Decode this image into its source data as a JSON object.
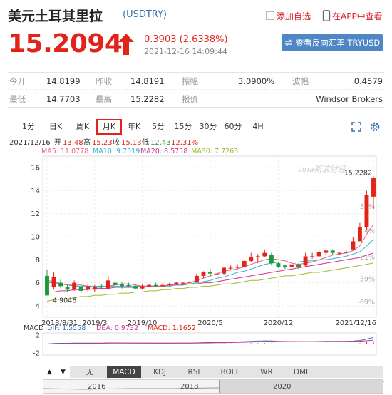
{
  "header": {
    "title": "美元土耳其里拉",
    "symbol": "(USDTRY)",
    "fav_label": "添加自选",
    "app_label": "在APP中查看",
    "price": "15.2094",
    "change": "0.3903 (2.6338%)",
    "time": "2021-12-16 14:09:44",
    "reverse_button": "查看反向汇率 TRYUSD",
    "colors": {
      "up": "#e2231a",
      "accent": "#4f86c6"
    }
  },
  "stats": {
    "row1": [
      {
        "label": "今开",
        "value": "14.8199"
      },
      {
        "label": "昨收",
        "value": "14.8191"
      },
      {
        "label": "振幅",
        "value": "3.0900%"
      },
      {
        "label": "波幅",
        "value": "0.4579"
      }
    ],
    "row2": [
      {
        "label": "最低",
        "value": "14.7703"
      },
      {
        "label": "最高",
        "value": "15.2282"
      },
      {
        "label": "报价",
        "value": "Windsor Brokers"
      }
    ]
  },
  "periods": {
    "items": [
      "1分",
      "日K",
      "周K",
      "月K",
      "年K",
      "5分",
      "15分",
      "30分",
      "60分",
      "4H"
    ],
    "active": "月K"
  },
  "ohlc": {
    "date": "2021/12/16",
    "open_label": "开",
    "open": "13.48",
    "high_label": "高",
    "high": "15.23",
    "close_label": "收",
    "close": "15.13",
    "low_label": "低",
    "low": "12.43",
    "pct": "12.31%"
  },
  "ma": {
    "ma5": "MA5: 11.0778",
    "ma10": "MA10: 9.7519",
    "ma20": "MA20: 8.5758",
    "ma30": "MA30: 7.7263",
    "colors": {
      "ma5": "#e8637f",
      "ma10": "#2fb4d6",
      "ma20": "#d2318e",
      "ma30": "#9bbf2a"
    }
  },
  "chart_data": {
    "type": "candlestick",
    "y_ticks": [
      "16",
      "14",
      "12",
      "10",
      "8",
      "6",
      "4"
    ],
    "y_values": [
      16,
      14,
      12,
      10,
      8,
      6,
      4
    ],
    "pct_ticks": [
      "38%",
      "4%",
      "-21%",
      "-39%",
      "-69%"
    ],
    "x_ticks": [
      "2018/8/31",
      "2019/3",
      "2019/10",
      "2020/5",
      "2020/12",
      "2021/12/16"
    ],
    "max_label": "15.2282",
    "min_label": "4.9046",
    "watermark": "sina新浪财经",
    "candles": [
      [
        6.6,
        4.9,
        7.1,
        4.9
      ],
      [
        5.6,
        6.5,
        6.9,
        5.4
      ],
      [
        6.0,
        5.7,
        6.3,
        5.5
      ],
      [
        5.6,
        5.4,
        5.8,
        5.2
      ],
      [
        5.4,
        6.0,
        6.2,
        5.3
      ],
      [
        5.6,
        5.3,
        5.8,
        5.1
      ],
      [
        5.4,
        5.7,
        5.9,
        5.2
      ],
      [
        5.4,
        5.6,
        5.8,
        5.2
      ],
      [
        5.7,
        5.6,
        5.9,
        5.4
      ],
      [
        5.5,
        6.2,
        6.6,
        5.4
      ],
      [
        6.0,
        5.8,
        6.2,
        5.6
      ],
      [
        5.9,
        5.7,
        6.1,
        5.5
      ],
      [
        5.8,
        5.7,
        6.0,
        5.6
      ],
      [
        5.7,
        5.5,
        5.9,
        5.4
      ],
      [
        5.5,
        5.7,
        5.9,
        5.4
      ],
      [
        5.7,
        5.8,
        5.9,
        5.6
      ],
      [
        5.8,
        5.7,
        6.0,
        5.6
      ],
      [
        5.7,
        5.8,
        6.0,
        5.6
      ],
      [
        5.8,
        5.9,
        6.0,
        5.7
      ],
      [
        5.9,
        6.0,
        6.1,
        5.8
      ],
      [
        6.0,
        6.0,
        6.1,
        5.8
      ],
      [
        6.0,
        6.1,
        6.3,
        5.9
      ],
      [
        6.1,
        6.6,
        6.8,
        6.0
      ],
      [
        6.6,
        6.9,
        7.0,
        6.4
      ],
      [
        6.9,
        6.8,
        7.1,
        6.6
      ],
      [
        6.8,
        6.8,
        7.0,
        6.5
      ],
      [
        6.8,
        7.3,
        7.4,
        6.7
      ],
      [
        7.3,
        7.3,
        7.5,
        7.1
      ],
      [
        7.3,
        7.4,
        7.6,
        7.2
      ],
      [
        7.4,
        7.9,
        8.0,
        7.3
      ],
      [
        7.9,
        8.2,
        8.6,
        7.8
      ],
      [
        8.2,
        8.3,
        8.5,
        7.7
      ],
      [
        8.3,
        8.6,
        8.9,
        8.2
      ],
      [
        8.4,
        7.7,
        8.6,
        7.5
      ],
      [
        7.7,
        7.4,
        7.8,
        7.3
      ],
      [
        7.5,
        7.4,
        7.6,
        7.2
      ],
      [
        7.4,
        7.6,
        7.8,
        7.3
      ],
      [
        7.6,
        7.4,
        7.7,
        7.2
      ],
      [
        7.5,
        8.3,
        8.6,
        7.4
      ],
      [
        8.3,
        8.3,
        8.6,
        8.1
      ],
      [
        8.3,
        8.7,
        8.9,
        8.2
      ],
      [
        8.6,
        8.8,
        8.9,
        8.4
      ],
      [
        8.8,
        8.6,
        8.9,
        8.4
      ],
      [
        8.6,
        8.6,
        8.7,
        8.4
      ],
      [
        8.6,
        8.7,
        8.9,
        8.5
      ],
      [
        8.9,
        9.6,
        10.0,
        8.8
      ],
      [
        9.6,
        10.8,
        11.2,
        9.6
      ],
      [
        10.8,
        13.6,
        14.0,
        10.6
      ],
      [
        13.48,
        15.13,
        15.23,
        12.43
      ]
    ],
    "ma5": [
      6.2,
      6.1,
      5.9,
      5.8,
      5.8,
      5.8,
      5.7,
      5.6,
      5.6,
      5.7,
      5.8,
      5.9,
      5.9,
      5.8,
      5.7,
      5.7,
      5.7,
      5.7,
      5.8,
      5.8,
      5.9,
      6.0,
      6.2,
      6.4,
      6.6,
      6.8,
      7.0,
      7.1,
      7.2,
      7.4,
      7.6,
      7.8,
      8.0,
      8.1,
      8.0,
      7.9,
      7.7,
      7.6,
      7.7,
      7.8,
      8.0,
      8.2,
      8.4,
      8.5,
      8.6,
      8.8,
      9.2,
      10.2,
      11.0778
    ],
    "ma10": [
      6.0,
      6.0,
      5.9,
      5.8,
      5.7,
      5.7,
      5.7,
      5.7,
      5.7,
      5.7,
      5.7,
      5.7,
      5.7,
      5.7,
      5.7,
      5.7,
      5.7,
      5.7,
      5.7,
      5.8,
      5.8,
      5.9,
      6.0,
      6.1,
      6.2,
      6.4,
      6.5,
      6.7,
      6.9,
      7.0,
      7.2,
      7.4,
      7.6,
      7.7,
      7.8,
      7.8,
      7.8,
      7.8,
      7.9,
      7.9,
      8.0,
      8.0,
      8.1,
      8.2,
      8.3,
      8.5,
      8.7,
      9.2,
      9.7519
    ],
    "ma20": [
      5.2,
      5.2,
      5.3,
      5.3,
      5.4,
      5.4,
      5.4,
      5.5,
      5.5,
      5.5,
      5.6,
      5.6,
      5.6,
      5.6,
      5.7,
      5.7,
      5.7,
      5.7,
      5.8,
      5.8,
      5.8,
      5.9,
      5.9,
      6.0,
      6.0,
      6.1,
      6.2,
      6.3,
      6.4,
      6.5,
      6.6,
      6.7,
      6.8,
      6.9,
      7.0,
      7.1,
      7.2,
      7.3,
      7.4,
      7.5,
      7.6,
      7.7,
      7.8,
      7.9,
      8.0,
      8.1,
      8.2,
      8.4,
      8.5758
    ],
    "ma30": [
      4.4,
      4.5,
      4.6,
      4.6,
      4.7,
      4.8,
      4.8,
      4.9,
      4.9,
      5.0,
      5.0,
      5.1,
      5.1,
      5.2,
      5.2,
      5.3,
      5.3,
      5.4,
      5.4,
      5.5,
      5.5,
      5.6,
      5.6,
      5.7,
      5.7,
      5.8,
      5.9,
      5.9,
      6.0,
      6.1,
      6.2,
      6.2,
      6.3,
      6.4,
      6.5,
      6.6,
      6.6,
      6.7,
      6.8,
      6.9,
      6.9,
      7.0,
      7.1,
      7.2,
      7.3,
      7.4,
      7.5,
      7.6,
      7.7263
    ],
    "ylim": [
      3,
      17
    ]
  },
  "macd": {
    "label": "MACD",
    "dif": "DIF: 1.5558",
    "dea": "DEA: 0.9732",
    "macd": "MACD: 1.1652",
    "y_ticks": [
      "2",
      "-2"
    ],
    "colors": {
      "dif": "#3c6eb4",
      "dea": "#d2318e",
      "macd": "#e2231a"
    }
  },
  "indicators": {
    "items": [
      "无",
      "MACD",
      "KDJ",
      "RSI",
      "BOLL",
      "WR",
      "DMI"
    ],
    "active": "MACD",
    "prev": "▲",
    "next": "▼"
  },
  "timeline": {
    "labels": [
      "2016",
      "2018",
      "2020"
    ]
  }
}
